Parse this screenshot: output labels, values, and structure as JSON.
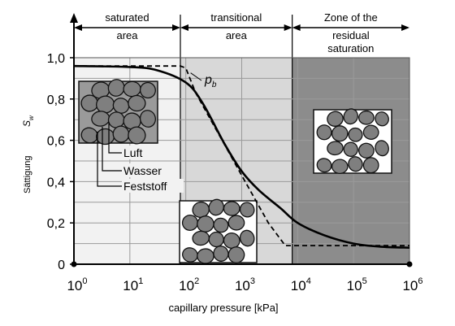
{
  "chart_data": {
    "type": "line",
    "title": "",
    "xlabel": "capillary pressure [kPa]",
    "ylabel_de": "Sättigung",
    "ylabel_symbol": "S",
    "ylabel_subscript": "w",
    "x_scale": "log",
    "xlim": [
      1,
      1000000
    ],
    "ylim": [
      0,
      1.0
    ],
    "x_tick_base": "10",
    "x_tick_exponents": [
      "0",
      "1",
      "2",
      "3",
      "4",
      "5",
      "6"
    ],
    "y_ticks": [
      {
        "value": 0,
        "label": "0"
      },
      {
        "value": 0.2,
        "label": "0,2"
      },
      {
        "value": 0.4,
        "label": "0,4"
      },
      {
        "value": 0.6,
        "label": "0,6"
      },
      {
        "value": 0.8,
        "label": "0,8"
      },
      {
        "value": 1.0,
        "label": "1,0"
      }
    ],
    "grid": true,
    "zones": [
      {
        "label_lines": [
          "saturated",
          "area"
        ],
        "x_from": 1,
        "x_to": 80,
        "fill": "#f2f2f2"
      },
      {
        "label_lines": [
          "transitional",
          "area"
        ],
        "x_from": 80,
        "x_to": 8000,
        "fill": "#d8d8d8"
      },
      {
        "label_lines": [
          "Zone of the",
          "residual",
          "saturation"
        ],
        "x_from": 8000,
        "x_to": 1000000,
        "fill": "#8c8c8c"
      }
    ],
    "series": [
      {
        "style": "solid",
        "points": [
          [
            1,
            0.96
          ],
          [
            10,
            0.955
          ],
          [
            30,
            0.94
          ],
          [
            100,
            0.88
          ],
          [
            200,
            0.78
          ],
          [
            500,
            0.58
          ],
          [
            1000,
            0.45
          ],
          [
            2000,
            0.36
          ],
          [
            5000,
            0.27
          ],
          [
            10000,
            0.2
          ],
          [
            30000,
            0.14
          ],
          [
            100000,
            0.1
          ],
          [
            300000,
            0.085
          ],
          [
            1000000,
            0.08
          ]
        ]
      },
      {
        "style": "dashed",
        "points": [
          [
            1,
            0.96
          ],
          [
            80,
            0.96
          ],
          [
            100,
            0.95
          ],
          [
            150,
            0.83
          ],
          [
            1000,
            0.43
          ],
          [
            3000,
            0.2
          ],
          [
            6000,
            0.09
          ],
          [
            1000000,
            0.09
          ]
        ]
      }
    ],
    "annotations": {
      "pb_symbol": "p",
      "pb_subscript": "b",
      "pb_point": [
        100,
        0.95
      ],
      "legend_items": [
        "Luft",
        "Wasser",
        "Feststoff"
      ]
    },
    "colors": {
      "curve": "#000000",
      "grid": "#9a9a9a",
      "solid_grain": "#7f7f7f"
    }
  }
}
